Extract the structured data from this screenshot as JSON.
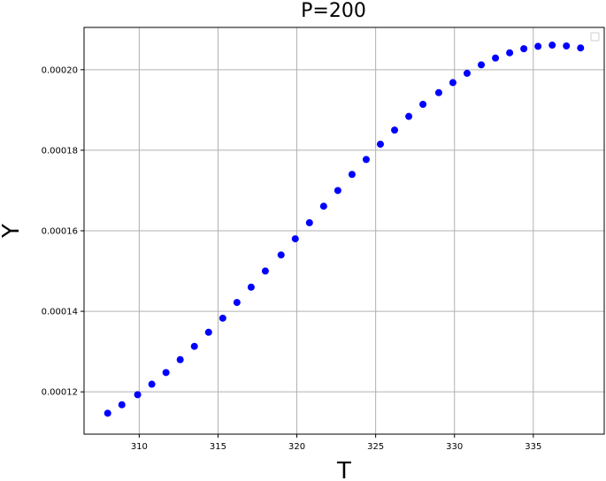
{
  "chart_data": {
    "type": "scatter",
    "title": "P=200",
    "xlabel": "T",
    "ylabel": "Y",
    "xlim": [
      306.5,
      339.5
    ],
    "ylim": [
      0.0001095,
      0.0002105
    ],
    "xticks": [
      310,
      315,
      320,
      325,
      330,
      335
    ],
    "xtick_labels": [
      "310",
      "315",
      "320",
      "325",
      "330",
      "335"
    ],
    "yticks": [
      0.00012,
      0.00014,
      0.00016,
      0.00018,
      0.0002
    ],
    "ytick_labels": [
      "0.00012",
      "0.00014",
      "0.00016",
      "0.00018",
      "0.00020"
    ],
    "grid": true,
    "legend": {
      "placement": "top-right",
      "entries": []
    },
    "marker_color": "#0000ff",
    "series": [
      {
        "x": [
          308.0,
          308.9,
          309.9,
          310.8,
          311.7,
          312.6,
          313.5,
          314.4,
          315.3,
          316.2,
          317.1,
          318.0,
          319.0,
          319.9,
          320.8,
          321.7,
          322.6,
          323.5,
          324.4,
          325.3,
          326.2,
          327.1,
          328.0,
          329.0,
          329.9,
          330.8,
          331.7,
          332.6,
          333.5,
          334.4,
          335.3,
          336.2,
          337.1,
          338.0
        ],
        "y": [
          0.0001147,
          0.0001168,
          0.0001193,
          0.0001219,
          0.0001248,
          0.000128,
          0.0001313,
          0.0001348,
          0.0001383,
          0.0001422,
          0.000146,
          0.00015,
          0.000154,
          0.000158,
          0.000162,
          0.0001661,
          0.00017,
          0.000174,
          0.0001777,
          0.0001815,
          0.000185,
          0.0001884,
          0.0001914,
          0.0001943,
          0.0001968,
          0.0001991,
          0.0002012,
          0.0002029,
          0.0002042,
          0.0002052,
          0.0002058,
          0.0002061,
          0.0002059,
          0.0002054
        ]
      }
    ]
  }
}
